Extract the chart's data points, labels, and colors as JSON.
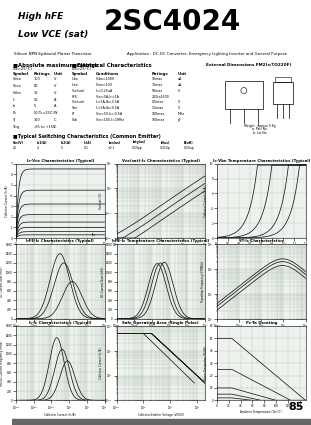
{
  "title_small1": "High hFE",
  "title_small2": "Low VCE (sat)",
  "part_number": "2SC4024",
  "subtitle": "Silicon NPN Epitaxial Planar Transistor",
  "application": "Application : DC-DC Converter, Emergency Lighting Inverter and General Purpose",
  "ext_dim_title": "External Dimensions FM2(s/TO220F)",
  "bg_color": "#d8d8d8",
  "white": "#ffffff",
  "black": "#000000",
  "gray_line": "#666666",
  "page_number": "85",
  "abs_max_title": "Absolute maximum ratings",
  "elec_char_title": "Electrical Characteristics",
  "sw_char_title": "Typical Switching Characteristics (Common Emitter)",
  "abs_max_rows": [
    [
      "Vcbo",
      "100",
      "V"
    ],
    [
      "Vceo",
      "80",
      "V"
    ],
    [
      "Vebo",
      "15",
      "V"
    ],
    [
      "Ic",
      "50",
      "A"
    ],
    [
      "Ib",
      "5",
      "A"
    ],
    [
      "Pc",
      "50(Tc=25C)",
      "W"
    ],
    [
      "Tj",
      "150",
      "C"
    ],
    [
      "Tstg",
      "-65 to +150",
      "C"
    ]
  ],
  "elec_rows": [
    [
      "Icbo",
      "Vcbo=100V",
      "10max",
      "uA"
    ],
    [
      "Iceo",
      "Vceo=10V",
      "70max",
      "uA"
    ],
    [
      "Vce(sat)",
      "Ic=0.25uA",
      "50max",
      "V"
    ],
    [
      "hFE",
      "Vce=5A,Ic=1A",
      "200to1600",
      ""
    ],
    [
      "Vce(sat)",
      "Ic=5A,Ib=0.5A",
      "0.5max",
      "V"
    ],
    [
      "Vbe",
      "Ic=5A,Ib=0.5A",
      "1.5max",
      "V"
    ],
    [
      "fT",
      "Vce=5V,Ic=0.5A",
      "100max",
      "MHz"
    ],
    [
      "Cob",
      "Vce=10V,f=1MHz",
      "100max",
      "pF"
    ]
  ],
  "sw_headers": [
    "Vcc(V)",
    "Ib1(A)",
    "Ib2(A)",
    "Ic(A)",
    "ton(us)",
    "tstg(us)",
    "tf(us)",
    "B(uH)"
  ],
  "sw_row": [
    "20",
    "4",
    "5",
    "0.1",
    "<0.1",
    "0.50pp",
    "0.310p",
    "0.50up"
  ],
  "graph_bg": "#eef2ee",
  "graph_grid": "#bbccbb"
}
